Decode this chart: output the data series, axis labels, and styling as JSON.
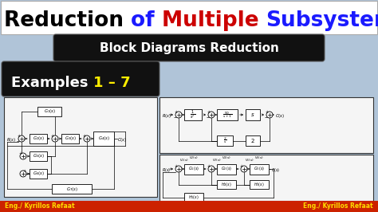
{
  "title_parts": [
    {
      "text": "Reduction ",
      "color": "#000000"
    },
    {
      "text": "of ",
      "color": "#1a1aff"
    },
    {
      "text": "Multiple ",
      "color": "#cc0000"
    },
    {
      "text": "Subsystems",
      "color": "#1a1aff"
    }
  ],
  "subtitle": "Block Diagrams Reduction",
  "examples_label": "Examples ",
  "examples_highlight": "1 – 7",
  "bg_color": "#b0c4d8",
  "title_bg": "#ffffff",
  "subtitle_bg": "#111111",
  "examples_bg": "#111111",
  "footer_bg": "#cc2200",
  "footer_text": "Eng./ Kyrillos Refaat",
  "footer_text_color": "#ffdd00",
  "diagram_bg": "#f0f0f0",
  "diagram_edge": "#333333"
}
